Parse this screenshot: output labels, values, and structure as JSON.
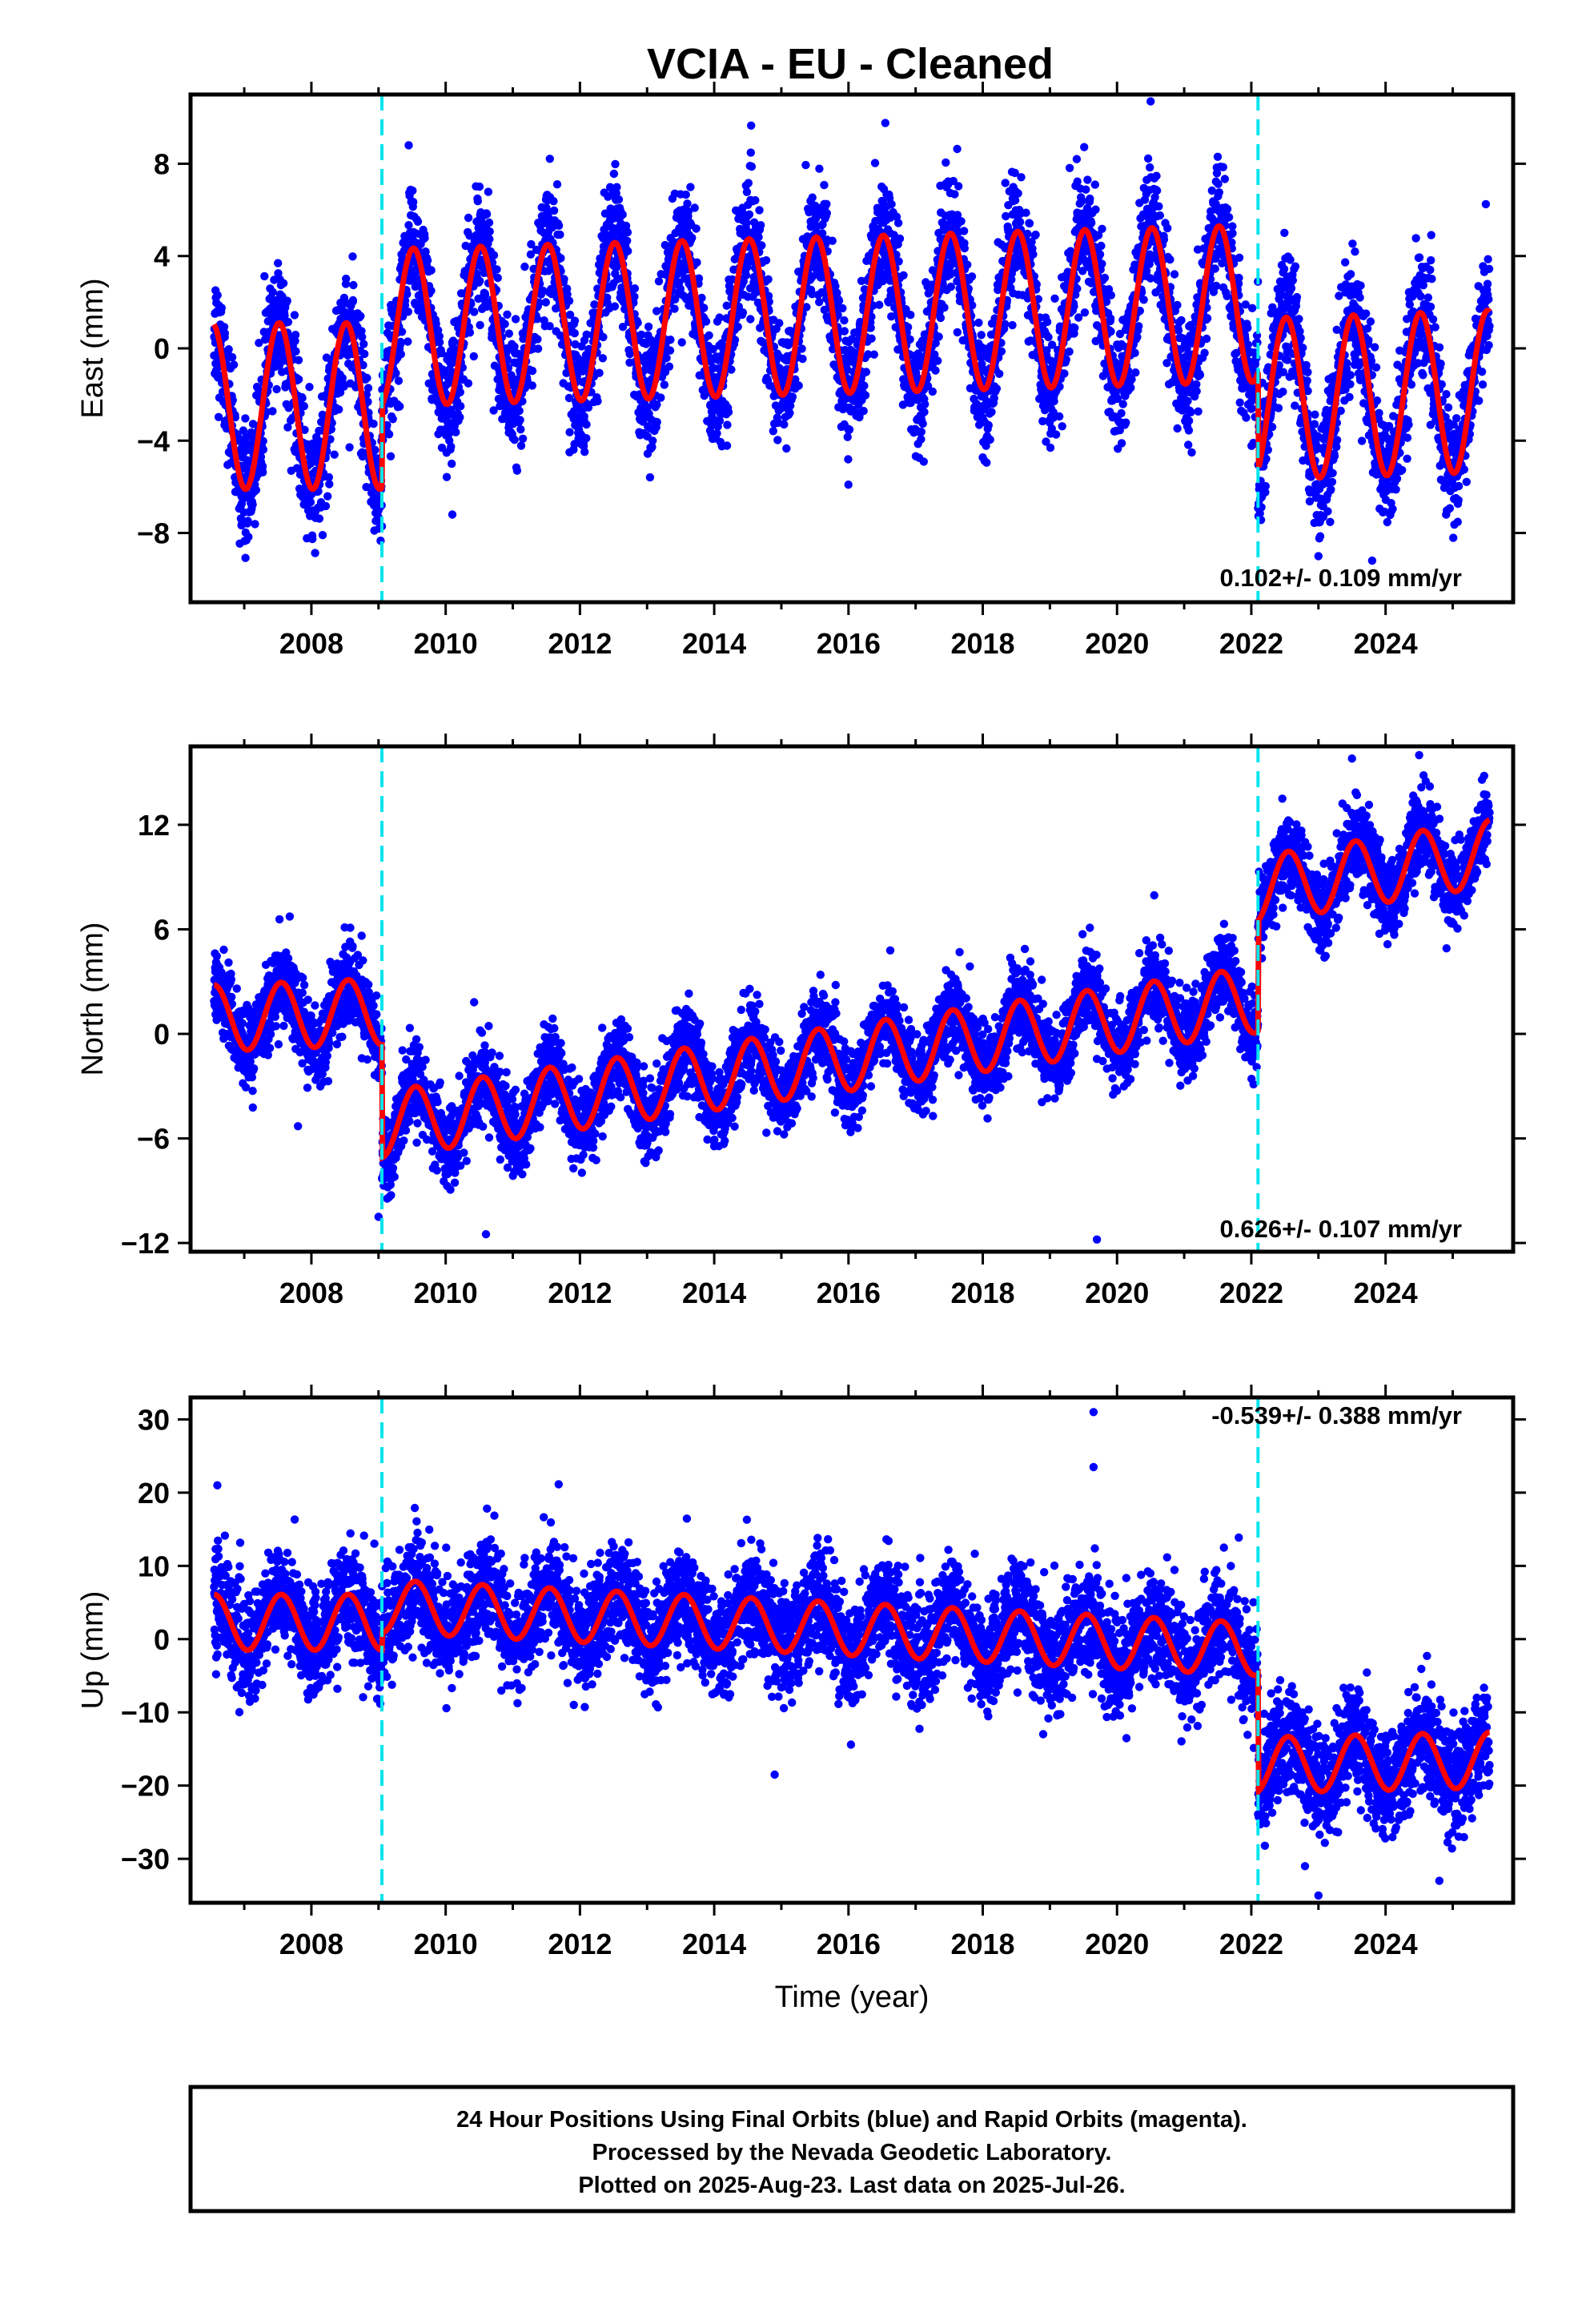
{
  "title": "VCIA  - EU - Cleaned",
  "colors": {
    "points": "#0000ff",
    "model": "#ff0000",
    "breaks": "#00e5ee"
  },
  "chart_data": [
    {
      "type": "scatter",
      "component": "east",
      "ylabel": "East (mm)",
      "xlabel": "",
      "xlim": [
        2006.2,
        2025.9
      ],
      "ylim": [
        -11,
        11
      ],
      "yticks": [
        -8,
        -4,
        0,
        4,
        8
      ],
      "xticks": [
        2008,
        2010,
        2012,
        2014,
        2016,
        2018,
        2020,
        2022,
        2024
      ],
      "rate_text": "0.102+/- 0.109 mm/yr",
      "break_lines": [
        2009.05,
        2022.1
      ],
      "model_segments": [
        {
          "start": 2006.55,
          "end": 2009.05,
          "offset": -2.5,
          "slope": 0.0,
          "amplitude": 3.6,
          "peak_phase": 0.52
        },
        {
          "start": 2009.05,
          "end": 2022.1,
          "offset": 0.9,
          "slope": 0.08,
          "amplitude": 3.4,
          "peak_phase": 0.52
        },
        {
          "start": 2022.1,
          "end": 2025.55,
          "offset": -2.2,
          "slope": 0.1,
          "amplitude": 3.5,
          "peak_phase": 0.52
        }
      ],
      "noise_sd": 1.3,
      "outliers": [
        [
          2020.5,
          10.7
        ],
        [
          2019.4,
          8.2
        ],
        [
          2021.5,
          8.3
        ],
        [
          2009.45,
          8.8
        ],
        [
          2010.1,
          -7.2
        ],
        [
          2023.0,
          -9.0
        ],
        [
          2023.8,
          -9.2
        ]
      ]
    },
    {
      "type": "scatter",
      "component": "north",
      "ylabel": "North (mm)",
      "xlabel": "",
      "xlim": [
        2006.2,
        2025.9
      ],
      "ylim": [
        -12.5,
        16.5
      ],
      "yticks": [
        -12,
        -6,
        0,
        6,
        12
      ],
      "xticks": [
        2008,
        2010,
        2012,
        2014,
        2016,
        2018,
        2020,
        2022,
        2024
      ],
      "rate_text": "0.626+/- 0.107 mm/yr",
      "break_lines": [
        2009.05,
        2022.1
      ],
      "model_segments": [
        {
          "start": 2006.55,
          "end": 2009.05,
          "offset": 0.9,
          "slope": 0.15,
          "amplitude": 1.9,
          "peak_phase": 0.55
        },
        {
          "start": 2009.05,
          "end": 2022.1,
          "offset": -5.2,
          "slope": 0.55,
          "amplitude": 1.9,
          "peak_phase": 0.55
        },
        {
          "start": 2022.1,
          "end": 2025.55,
          "offset": 8.3,
          "slope": 0.6,
          "amplitude": 1.9,
          "peak_phase": 0.55
        }
      ],
      "noise_sd": 1.15,
      "outliers": [
        [
          2024.5,
          16.0
        ],
        [
          2009.0,
          -10.5
        ],
        [
          2010.6,
          -11.5
        ],
        [
          2019.7,
          -11.8
        ],
        [
          2007.8,
          -5.3
        ],
        [
          2023.5,
          15.8
        ]
      ]
    },
    {
      "type": "scatter",
      "component": "up",
      "ylabel": "Up (mm)",
      "xlabel": "Time (year)",
      "xlim": [
        2006.2,
        2025.9
      ],
      "ylim": [
        -36,
        33
      ],
      "yticks": [
        -30,
        -20,
        -10,
        0,
        10,
        20,
        30
      ],
      "xticks": [
        2008,
        2010,
        2012,
        2014,
        2016,
        2018,
        2020,
        2022,
        2024
      ],
      "rate_text": "-0.539+/- 0.388 mm/yr",
      "break_lines": [
        2009.05,
        2022.1
      ],
      "model_segments": [
        {
          "start": 2006.55,
          "end": 2009.05,
          "offset": 2.3,
          "slope": 0.0,
          "amplitude": 3.8,
          "peak_phase": 0.55
        },
        {
          "start": 2009.05,
          "end": 2022.1,
          "offset": 4.5,
          "slope": -0.45,
          "amplitude": 3.6,
          "peak_phase": 0.55
        },
        {
          "start": 2022.1,
          "end": 2025.55,
          "offset": -17.2,
          "slope": 0.2,
          "amplitude": 3.8,
          "peak_phase": 0.55
        }
      ],
      "noise_sd": 3.6,
      "outliers": [
        [
          2019.65,
          31.0
        ],
        [
          2019.65,
          23.5
        ],
        [
          2006.6,
          21.0
        ],
        [
          2023.0,
          -35.0
        ],
        [
          2014.9,
          -18.5
        ],
        [
          2022.8,
          -31.0
        ],
        [
          2024.8,
          -33.0
        ]
      ]
    }
  ],
  "footer": {
    "lines": [
      "24 Hour Positions Using Final Orbits (blue) and Rapid Orbits (magenta).",
      "Processed by the Nevada Geodetic Laboratory.",
      "Plotted on 2025-Aug-23. Last data on 2025-Jul-26."
    ]
  }
}
